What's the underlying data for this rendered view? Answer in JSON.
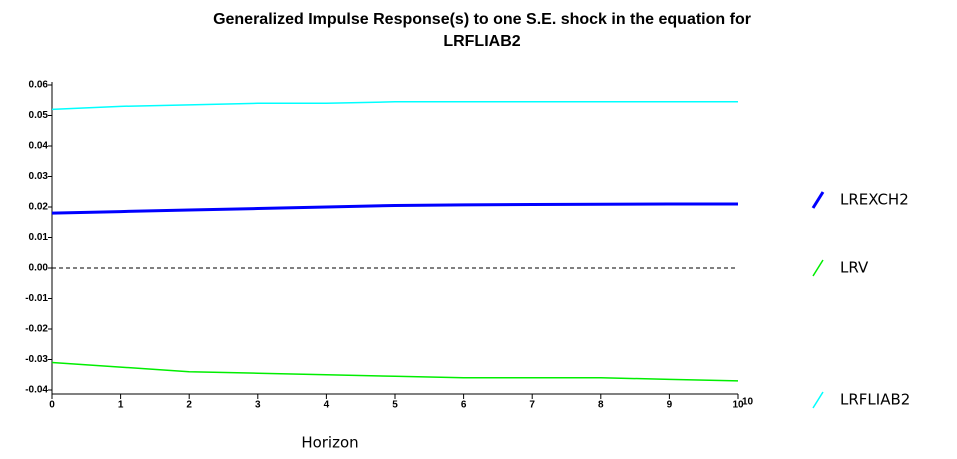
{
  "chart_data": {
    "type": "line",
    "title": [
      "Generalized Impulse Response(s) to one S.E. shock in the equation for",
      "LRFLIAB2"
    ],
    "x_label": "Horizon",
    "x": [
      0,
      1,
      2,
      3,
      4,
      5,
      6,
      7,
      8,
      9,
      10
    ],
    "series": [
      {
        "name": "LREXCH2",
        "color": "#0000ff",
        "values": [
          0.018,
          0.0185,
          0.019,
          0.0195,
          0.02,
          0.0205,
          0.0207,
          0.0208,
          0.0209,
          0.021,
          0.021
        ]
      },
      {
        "name": "LRV",
        "color": "#00ee00",
        "values": [
          -0.031,
          -0.0325,
          -0.034,
          -0.0345,
          -0.035,
          -0.0355,
          -0.036,
          -0.036,
          -0.036,
          -0.0365,
          -0.037
        ]
      },
      {
        "name": "LRFLIAB2",
        "color": "#00ffff",
        "values": [
          0.052,
          0.053,
          0.0535,
          0.054,
          0.054,
          0.0545,
          0.0545,
          0.0545,
          0.0545,
          0.0545,
          0.0545
        ]
      }
    ],
    "xlim": [
      0,
      10
    ],
    "xticks": [
      0,
      1,
      2,
      3,
      4,
      5,
      6,
      7,
      8,
      9,
      10
    ],
    "x_end_label": "10",
    "ylim": [
      -0.04,
      0.06
    ],
    "yticks": [
      0.06,
      0.05,
      0.04,
      0.03,
      0.02,
      0.01,
      {
        "value": 0,
        "label": "0.00"
      },
      -0.01,
      -0.02,
      -0.03,
      -0.04
    ],
    "reference_line": 0
  }
}
